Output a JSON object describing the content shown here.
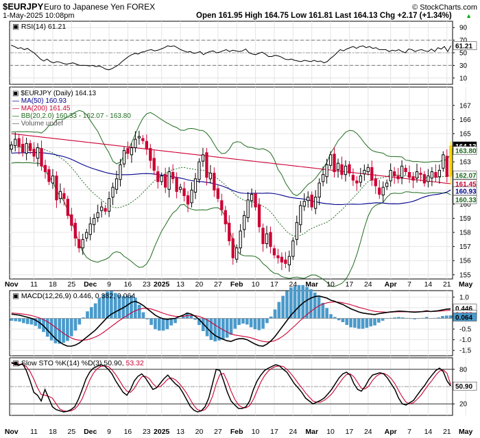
{
  "header": {
    "symbol": "$EURJPY",
    "name": "Euro to Japanese Yen FOREX",
    "copyright": "© StockCharts.com",
    "date": "1-May-2025 10:08pm",
    "ohlc": "Open 161.95  High 164.75  Low 161.81  Last 164.13  Chg +2.17 (+1.34%)",
    "ohlc_arrow": "▲"
  },
  "colors": {
    "up": "#000000",
    "down": "#cc0033",
    "ma50": "#00008b",
    "ma200": "#cc0033",
    "bb": "#1e6b1e",
    "macd": "#000000",
    "signal": "#cc0033",
    "hist": "#4a9acb",
    "stok": "#000000",
    "stod": "#cc0033",
    "last": "#ffd700"
  },
  "chart_data": [
    {
      "type": "line",
      "panel": "rsi",
      "legend": [
        "RSI(14) 61.21"
      ],
      "y_ticks": [
        10,
        30,
        50,
        70,
        90
      ],
      "ylim": [
        0,
        100
      ],
      "reference_lines": [
        30,
        70
      ],
      "last_label": "61.21",
      "series": [
        {
          "name": "RSI(14)",
          "values": [
            62,
            60,
            57,
            58,
            55,
            57,
            53,
            50,
            45,
            40,
            37,
            40,
            36,
            34,
            36,
            35,
            33,
            32,
            33,
            34,
            32,
            30,
            30,
            30,
            29,
            30,
            28,
            29,
            27,
            24,
            23,
            25,
            28,
            31,
            36,
            40,
            44,
            47,
            49,
            48,
            51,
            52,
            54,
            55,
            53,
            54,
            56,
            58,
            61,
            60,
            61,
            58,
            55,
            53,
            51,
            52,
            49,
            50,
            52,
            47,
            50,
            52,
            53,
            50,
            51,
            53,
            55,
            52,
            54,
            53,
            52,
            53,
            56,
            50,
            48,
            47,
            49,
            51,
            48,
            44,
            44,
            46,
            45,
            43,
            40,
            39,
            40,
            38,
            37,
            36,
            38,
            37,
            36,
            38,
            36,
            37,
            34,
            36,
            41,
            45,
            50,
            55,
            53,
            56,
            58,
            60,
            57,
            60,
            61,
            58,
            60,
            57,
            58,
            55,
            55,
            55,
            52,
            54,
            53,
            55,
            52,
            50,
            56,
            55,
            52,
            54,
            55,
            53,
            52,
            56,
            52,
            58,
            56,
            60,
            52,
            61.21
          ]
        }
      ]
    },
    {
      "type": "candlestick",
      "panel": "price",
      "legend": [
        "$EURJPY (Daily) 164.13",
        "MA(50) 160.93",
        "MA(200) 161.45",
        "BB(20,2.0) 160.33 - 162.07 - 163.80",
        "Volume undef"
      ],
      "y_ticks": [
        155,
        156,
        157,
        158,
        159,
        160,
        161,
        162,
        163,
        164,
        165,
        166,
        167
      ],
      "ylim": [
        154.7,
        168.3
      ],
      "x_labels": [
        "Nov",
        "11",
        "18",
        "25",
        "Dec",
        "9",
        "16",
        "23",
        "2025",
        "13",
        "20",
        "27",
        "Feb",
        "10",
        "17",
        "24",
        "Mar",
        "10",
        "17",
        "24",
        "Apr",
        "7",
        "14",
        "21",
        "May"
      ],
      "x_label_bars": [
        0,
        6,
        11,
        16,
        21,
        26,
        31,
        36,
        40,
        45,
        50,
        55,
        60,
        65,
        70,
        75,
        80,
        85,
        90,
        95,
        101,
        106,
        111,
        116,
        121
      ],
      "price_tags": [
        "164.13",
        "163.80",
        "162.07",
        "161.45",
        "160.93",
        "160.33"
      ],
      "price_tag_values": [
        164.13,
        163.8,
        162.07,
        161.45,
        160.93,
        160.33
      ],
      "closes": [
        164.2,
        164.6,
        164.1,
        163.7,
        164.3,
        163.8,
        163.4,
        164.0,
        162.7,
        162.3,
        161.6,
        162.0,
        160.3,
        160.9,
        160.4,
        159.2,
        158.5,
        157.6,
        156.9,
        157.5,
        158.0,
        158.6,
        159.0,
        159.4,
        159.8,
        159.5,
        160.4,
        161.2,
        161.8,
        162.8,
        163.8,
        163.6,
        164.0,
        164.6,
        164.8,
        164.5,
        163.9,
        163.1,
        162.4,
        161.6,
        162.0,
        161.2,
        162.3,
        161.8,
        160.9,
        161.2,
        160.6,
        160.0,
        161.0,
        161.8,
        163.0,
        163.5,
        161.9,
        162.2,
        161.0,
        160.4,
        159.6,
        158.6,
        157.4,
        156.2,
        156.9,
        158.1,
        159.2,
        160.3,
        160.7,
        159.8,
        158.4,
        157.2,
        157.9,
        157.0,
        156.4,
        156.2,
        155.9,
        155.8,
        156.3,
        157.4,
        158.7,
        159.9,
        160.2,
        160.5,
        159.8,
        160.5,
        161.5,
        162.1,
        162.8,
        163.5,
        162.3,
        162.9,
        162.1,
        162.7,
        162.2,
        161.7,
        161.5,
        162.0,
        162.4,
        162.6,
        161.7,
        161.3,
        160.7,
        161.2,
        161.5,
        162.4,
        162.0,
        161.8,
        162.7,
        162.3,
        161.9,
        161.7,
        162.3,
        162.1,
        161.5,
        162.0,
        162.3,
        161.9,
        162.4,
        163.5,
        161.96,
        164.13
      ],
      "series_names": [
        "MA(50)",
        "MA(200)",
        "BB(20,2.0)"
      ]
    },
    {
      "type": "line",
      "panel": "macd",
      "legend": [
        "MACD(12,26,9) 0.446, 0.382, 0.064"
      ],
      "y_ticks": [
        -1.5,
        -1.0,
        -0.5,
        0.0,
        0.5,
        1.0
      ],
      "ylim": [
        -1.75,
        1.3
      ],
      "last_labels": [
        "0.446",
        "0.382",
        "0.064"
      ],
      "series": [
        {
          "name": "MACD",
          "values": [
            0.2,
            0.18,
            0.15,
            0.1,
            0.05,
            0.0,
            -0.08,
            -0.2,
            -0.35,
            -0.55,
            -0.75,
            -0.95,
            -1.1,
            -1.22,
            -1.3,
            -1.3,
            -1.25,
            -1.15,
            -1.0,
            -0.85,
            -0.7,
            -0.55,
            -0.35,
            -0.15,
            0.05,
            0.2,
            0.3,
            0.4,
            0.5,
            0.62,
            0.75,
            0.8,
            0.72,
            0.6,
            0.45,
            0.3,
            0.15,
            0.05,
            -0.02,
            -0.05,
            -0.02,
            0.0,
            0.08,
            0.15,
            0.25,
            0.2,
            0.1,
            -0.05,
            -0.25,
            -0.45,
            -0.65,
            -0.8,
            -0.9,
            -0.98,
            -1.05,
            -1.08,
            -1.0,
            -0.95,
            -0.95,
            -1.0,
            -1.1,
            -1.2,
            -1.28,
            -1.3,
            -1.2,
            -1.05,
            -0.85,
            -0.6,
            -0.35,
            -0.1,
            0.15,
            0.35,
            0.55,
            0.72,
            0.85,
            0.95,
            1.02,
            1.05,
            1.0,
            0.95,
            0.85,
            0.8,
            0.72,
            0.65,
            0.55,
            0.45,
            0.38,
            0.3,
            0.25,
            0.22,
            0.2,
            0.18,
            0.22,
            0.25,
            0.28,
            0.3,
            0.32,
            0.34,
            0.33,
            0.32,
            0.3,
            0.29,
            0.3,
            0.32,
            0.35,
            0.32,
            0.34,
            0.36,
            0.4,
            0.43,
            0.446
          ]
        },
        {
          "name": "Signal",
          "values": [
            0.25,
            0.24,
            0.22,
            0.2,
            0.17,
            0.13,
            0.08,
            0.02,
            -0.06,
            -0.16,
            -0.28,
            -0.42,
            -0.56,
            -0.7,
            -0.82,
            -0.92,
            -0.99,
            -1.02,
            -1.02,
            -1.0,
            -0.94,
            -0.87,
            -0.78,
            -0.66,
            -0.52,
            -0.38,
            -0.24,
            -0.1,
            0.02,
            0.14,
            0.26,
            0.36,
            0.43,
            0.47,
            0.47,
            0.44,
            0.38,
            0.31,
            0.24,
            0.18,
            0.13,
            0.1,
            0.09,
            0.1,
            0.13,
            0.14,
            0.13,
            0.09,
            0.02,
            -0.07,
            -0.19,
            -0.31,
            -0.43,
            -0.54,
            -0.64,
            -0.73,
            -0.78,
            -0.81,
            -0.84,
            -0.87,
            -0.91,
            -0.97,
            -1.03,
            -1.08,
            -1.1,
            -1.09,
            -1.04,
            -0.95,
            -0.83,
            -0.68,
            -0.51,
            -0.34,
            -0.16,
            0.01,
            0.18,
            0.33,
            0.47,
            0.59,
            0.67,
            0.73,
            0.76,
            0.77,
            0.76,
            0.73,
            0.69,
            0.64,
            0.58,
            0.52,
            0.47,
            0.42,
            0.37,
            0.33,
            0.31,
            0.3,
            0.29,
            0.29,
            0.3,
            0.31,
            0.31,
            0.31,
            0.31,
            0.31,
            0.31,
            0.31,
            0.32,
            0.32,
            0.33,
            0.34,
            0.35,
            0.37,
            0.382
          ]
        }
      ]
    },
    {
      "type": "line",
      "panel": "stochastic",
      "legend": [
        "Slow STO %K(14) %D(3) 50.90, 53.32"
      ],
      "y_ticks": [
        20,
        50,
        80
      ],
      "ylim": [
        0,
        100
      ],
      "reference_lines": [
        20,
        80
      ],
      "last_label": "50.90",
      "series": [
        {
          "name": "%K",
          "values": [
            92,
            89,
            87,
            90,
            78,
            60,
            40,
            35,
            25,
            45,
            30,
            15,
            10,
            8,
            6,
            7,
            10,
            15,
            28,
            45,
            63,
            75,
            82,
            85,
            88,
            86,
            80,
            72,
            60,
            50,
            40,
            35,
            45,
            60,
            68,
            72,
            65,
            55,
            45,
            48,
            56,
            64,
            70,
            62,
            55,
            50,
            40,
            28,
            16,
            9,
            6,
            8,
            15,
            30,
            55,
            80,
            78,
            60,
            40,
            25,
            18,
            12,
            12,
            15,
            25,
            45,
            60,
            70,
            78,
            82,
            85,
            88,
            86,
            80,
            75,
            65,
            55,
            48,
            40,
            30,
            25,
            20,
            23,
            26,
            30,
            37,
            45,
            55,
            65,
            72,
            75,
            70,
            55,
            45,
            42,
            50,
            62,
            70,
            72,
            74,
            72,
            65,
            55,
            45,
            30,
            20,
            18,
            22,
            26,
            35,
            44,
            52,
            62,
            70,
            78,
            82,
            76,
            60,
            50.9
          ]
        },
        {
          "name": "%D",
          "values": [
            90,
            90,
            89,
            88,
            85,
            76,
            63,
            48,
            36,
            35,
            33,
            30,
            20,
            11,
            8,
            7,
            8,
            11,
            18,
            29,
            45,
            61,
            73,
            81,
            85,
            86,
            85,
            79,
            71,
            61,
            50,
            42,
            40,
            47,
            58,
            67,
            68,
            64,
            55,
            49,
            50,
            56,
            63,
            65,
            62,
            56,
            48,
            39,
            28,
            17,
            10,
            8,
            10,
            18,
            33,
            55,
            71,
            73,
            59,
            42,
            28,
            18,
            14,
            13,
            17,
            28,
            43,
            58,
            69,
            77,
            82,
            85,
            86,
            85,
            80,
            73,
            65,
            56,
            48,
            39,
            32,
            25,
            23,
            23,
            26,
            31,
            37,
            46,
            55,
            64,
            71,
            72,
            67,
            57,
            47,
            46,
            51,
            61,
            68,
            72,
            73,
            70,
            64,
            55,
            43,
            32,
            23,
            20,
            22,
            28,
            35,
            44,
            53,
            61,
            70,
            77,
            79,
            73,
            53.32
          ]
        }
      ]
    }
  ]
}
